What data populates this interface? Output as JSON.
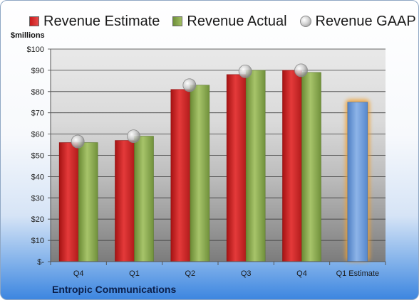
{
  "chart_data": {
    "type": "bar",
    "ylabel": "$millions",
    "company": "Entropic Communications",
    "categories": [
      "Q4",
      "Q1",
      "Q2",
      "Q3",
      "Q4",
      "Q1 Estimate"
    ],
    "ylim": [
      0,
      100
    ],
    "yticks": [
      "$-",
      "$10",
      "$20",
      "$30",
      "$40",
      "$50",
      "$60",
      "$70",
      "$80",
      "$90",
      "$100"
    ],
    "grid": true,
    "legend_position": "top",
    "series": [
      {
        "name": "Revenue Estimate",
        "kind": "bar",
        "color": "#d42a2a",
        "values": [
          56,
          57,
          81,
          88,
          90,
          null
        ]
      },
      {
        "name": "Revenue Actual",
        "kind": "bar",
        "color": "#8fae4e",
        "values": [
          56,
          59,
          83,
          90,
          89,
          null
        ]
      },
      {
        "name": "Revenue GAAP",
        "kind": "marker",
        "color": "#c8c8c8",
        "values": [
          56.5,
          59,
          83,
          89.5,
          90,
          null
        ]
      },
      {
        "name": "Q1 Estimate",
        "kind": "bar",
        "color": "#6f9fdb",
        "highlight": "#f0a030",
        "values": [
          null,
          null,
          null,
          null,
          null,
          75
        ]
      }
    ]
  }
}
